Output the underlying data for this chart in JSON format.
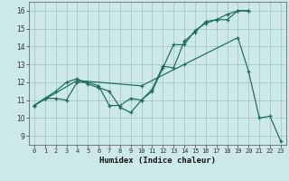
{
  "xlabel": "Humidex (Indice chaleur)",
  "bg_color": "#cce8e8",
  "grid_color": "#aacccc",
  "line_color": "#1a6b5a",
  "xlim": [
    -0.5,
    23.5
  ],
  "ylim": [
    8.5,
    16.5
  ],
  "xticks": [
    0,
    1,
    2,
    3,
    4,
    5,
    6,
    7,
    8,
    9,
    10,
    11,
    12,
    13,
    14,
    15,
    16,
    17,
    18,
    19,
    20,
    21,
    22,
    23
  ],
  "yticks": [
    9,
    10,
    11,
    12,
    13,
    14,
    15,
    16
  ],
  "line1_x": [
    0,
    1,
    2,
    3,
    4,
    5,
    6,
    7,
    8,
    9,
    10,
    11,
    12,
    13,
    14,
    15,
    16,
    17,
    18,
    19,
    20
  ],
  "line1_y": [
    10.7,
    11.1,
    11.5,
    12.0,
    12.2,
    11.9,
    11.7,
    11.5,
    10.6,
    10.3,
    11.0,
    11.6,
    12.9,
    12.8,
    14.3,
    14.8,
    15.4,
    15.5,
    15.5,
    16.0,
    16.0
  ],
  "line2_x": [
    0,
    1,
    2,
    3,
    4,
    5,
    6,
    7,
    8,
    9,
    10,
    11,
    12,
    13,
    14,
    15,
    16,
    17,
    18,
    19,
    20
  ],
  "line2_y": [
    10.7,
    11.1,
    11.1,
    11.0,
    12.0,
    12.0,
    11.8,
    10.7,
    10.7,
    11.1,
    11.0,
    11.5,
    12.8,
    14.1,
    14.1,
    14.9,
    15.3,
    15.5,
    15.8,
    16.0,
    16.0
  ],
  "line3_x": [
    0,
    4,
    10,
    14,
    19,
    20,
    21,
    22,
    23
  ],
  "line3_y": [
    10.7,
    12.1,
    11.8,
    13.0,
    14.5,
    12.6,
    10.0,
    10.1,
    8.7
  ]
}
